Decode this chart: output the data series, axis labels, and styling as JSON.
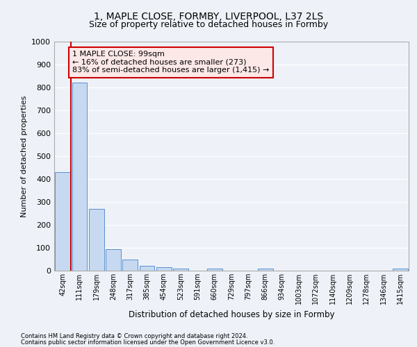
{
  "title_line1": "1, MAPLE CLOSE, FORMBY, LIVERPOOL, L37 2LS",
  "title_line2": "Size of property relative to detached houses in Formby",
  "xlabel": "Distribution of detached houses by size in Formby",
  "ylabel": "Number of detached properties",
  "footer_line1": "Contains HM Land Registry data © Crown copyright and database right 2024.",
  "footer_line2": "Contains public sector information licensed under the Open Government Licence v3.0.",
  "annotation_title": "1 MAPLE CLOSE: 99sqm",
  "annotation_line2": "← 16% of detached houses are smaller (273)",
  "annotation_line3": "83% of semi-detached houses are larger (1,415) →",
  "bar_labels": [
    "42sqm",
    "111sqm",
    "179sqm",
    "248sqm",
    "317sqm",
    "385sqm",
    "454sqm",
    "523sqm",
    "591sqm",
    "660sqm",
    "729sqm",
    "797sqm",
    "866sqm",
    "934sqm",
    "1003sqm",
    "1072sqm",
    "1140sqm",
    "1209sqm",
    "1278sqm",
    "1346sqm",
    "1415sqm"
  ],
  "bar_values": [
    430,
    820,
    270,
    93,
    47,
    20,
    15,
    8,
    0,
    8,
    0,
    0,
    8,
    0,
    0,
    0,
    0,
    0,
    0,
    0,
    8
  ],
  "bar_color": "#c6d9f0",
  "bar_edge_color": "#5b8fd4",
  "subject_line_color": "#cc0000",
  "ylim": [
    0,
    1000
  ],
  "yticks": [
    0,
    100,
    200,
    300,
    400,
    500,
    600,
    700,
    800,
    900,
    1000
  ],
  "bg_color": "#eef2f8",
  "plot_bg_color": "#eef2f8",
  "grid_color": "#ffffff",
  "annotation_box_facecolor": "#fde8e8",
  "annotation_box_edgecolor": "#cc0000",
  "title_fontsize": 10,
  "subtitle_fontsize": 9,
  "ylabel_fontsize": 8,
  "xlabel_fontsize": 8.5,
  "tick_fontsize": 8,
  "xtick_fontsize": 7,
  "footer_fontsize": 6,
  "annotation_fontsize": 8
}
